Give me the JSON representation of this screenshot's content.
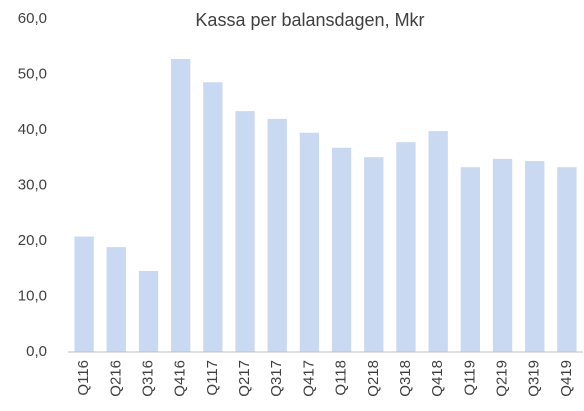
{
  "chart_data": {
    "type": "bar",
    "title": "Kassa per balansdagen, Mkr",
    "categories": [
      "Q116",
      "Q216",
      "Q316",
      "Q416",
      "Q117",
      "Q217",
      "Q317",
      "Q417",
      "Q118",
      "Q218",
      "Q318",
      "Q418",
      "Q119",
      "Q219",
      "Q319",
      "Q419"
    ],
    "values": [
      20.8,
      18.9,
      14.6,
      52.8,
      48.6,
      43.4,
      42.0,
      39.5,
      36.8,
      35.1,
      37.8,
      39.8,
      33.3,
      34.8,
      34.4,
      33.3
    ],
    "color": "#c8d9f1",
    "ylim": [
      0,
      60
    ],
    "yticks": [
      {
        "value": 0,
        "label": "0,0"
      },
      {
        "value": 10,
        "label": "10,0"
      },
      {
        "value": 20,
        "label": "20,0"
      },
      {
        "value": 30,
        "label": "30,0"
      },
      {
        "value": 40,
        "label": "40,0"
      },
      {
        "value": 50,
        "label": "50,0"
      },
      {
        "value": 60,
        "label": "60,0"
      }
    ],
    "grid": false
  }
}
